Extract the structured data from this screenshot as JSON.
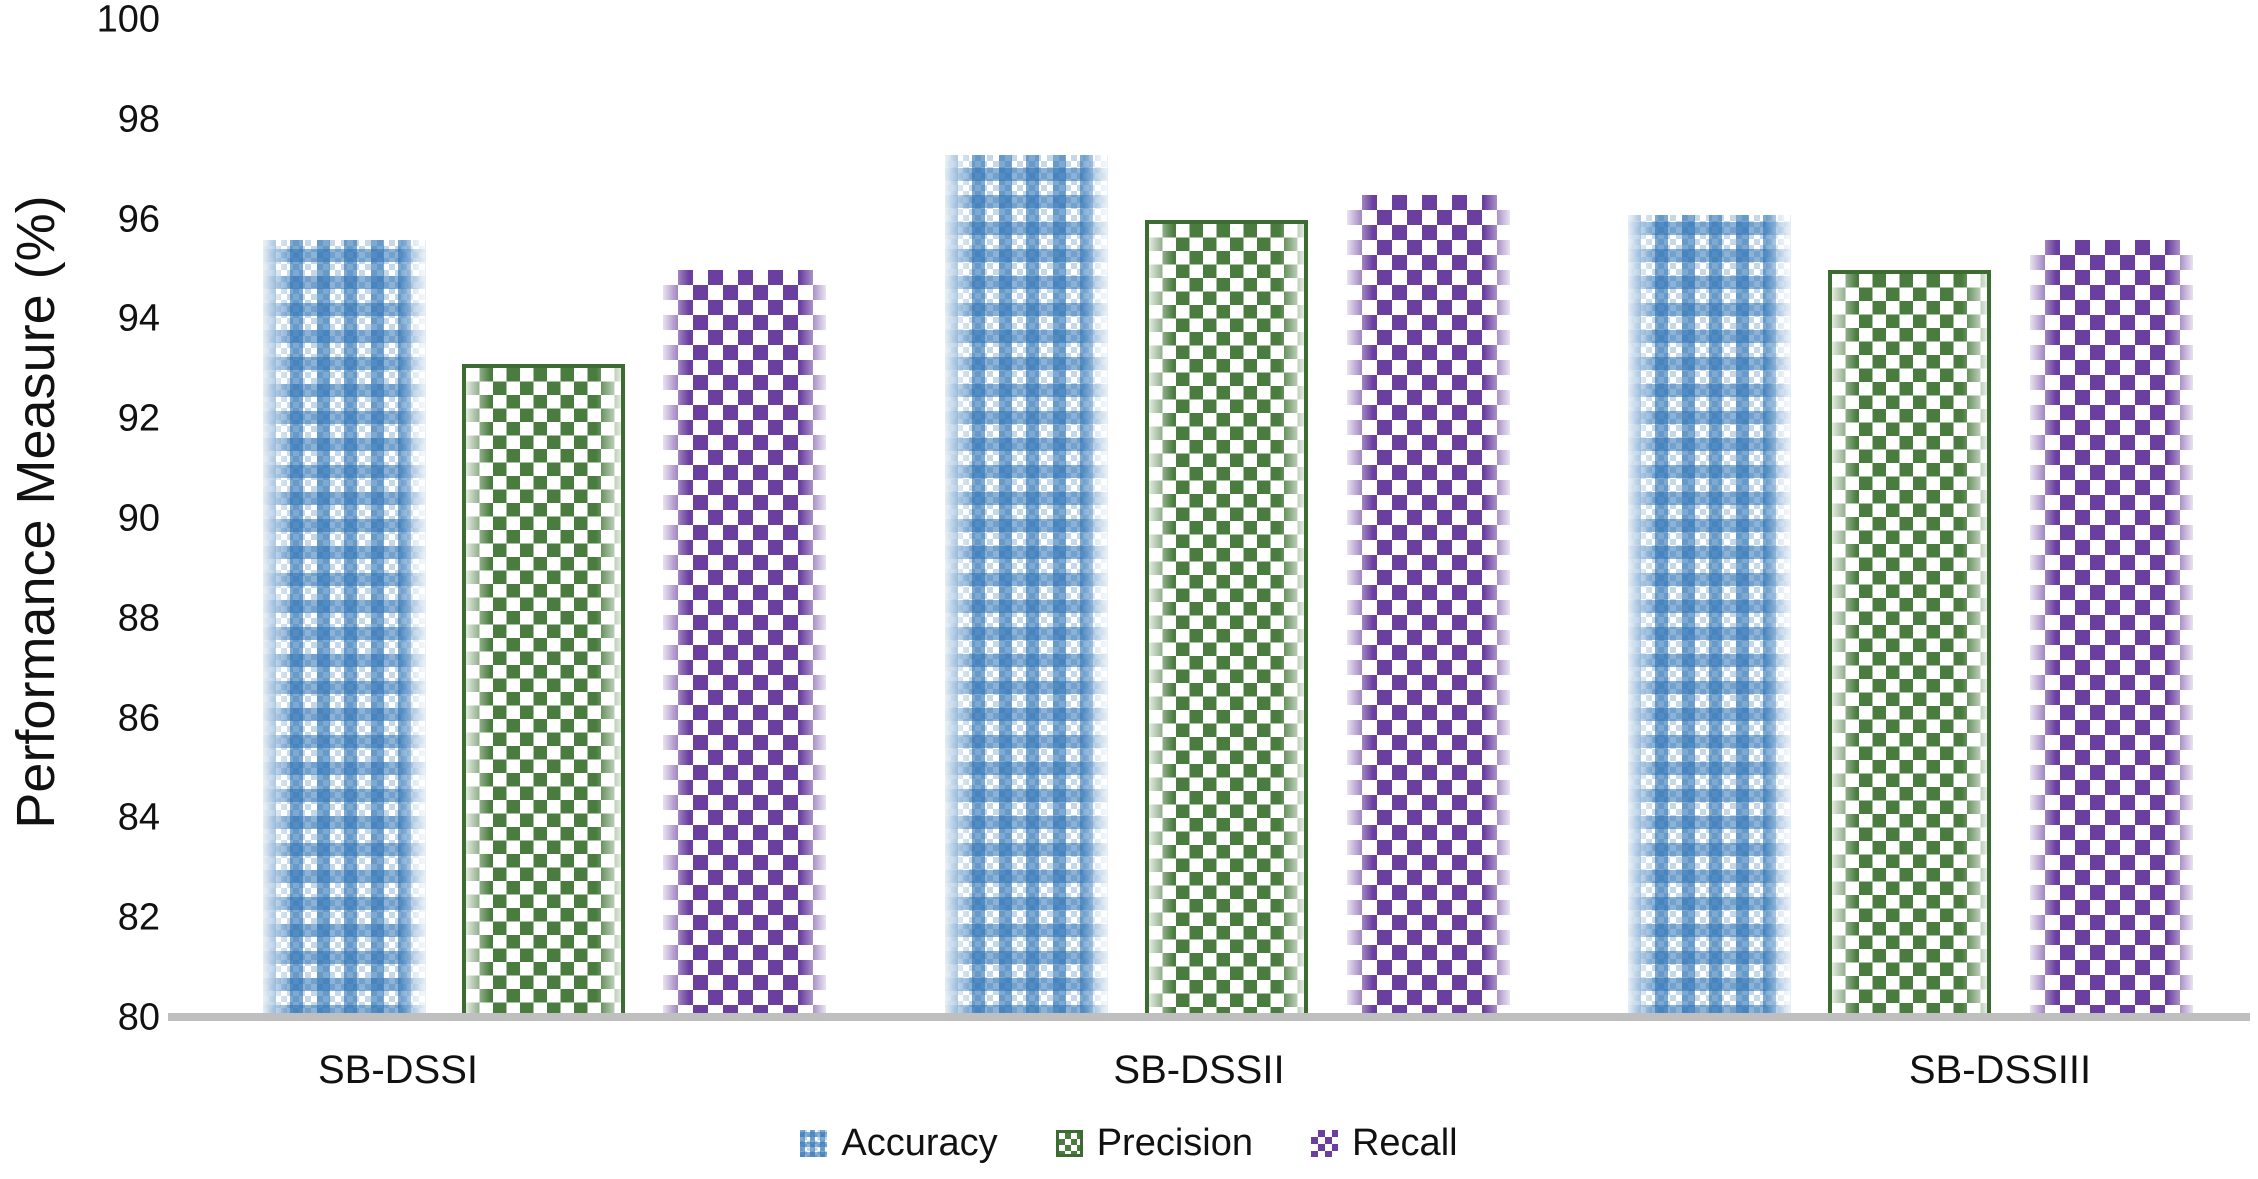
{
  "chart_data": {
    "type": "bar",
    "title": "",
    "xlabel": "",
    "ylabel": "Performance Measure (%)",
    "ylim": [
      80,
      100
    ],
    "ytick_step": 2,
    "ytick_labels": [
      "80",
      "82",
      "84",
      "86",
      "88",
      "90",
      "92",
      "94",
      "96",
      "98",
      "100"
    ],
    "categories": [
      "SB-DSSI",
      "SB-DSSII",
      "SB-DSSIII"
    ],
    "series": [
      {
        "name": "Accuracy",
        "pattern": "blue-weave",
        "color": "#2E74B5",
        "values": [
          95.6,
          97.3,
          96.1
        ]
      },
      {
        "name": "Precision",
        "pattern": "green-checker",
        "color": "#4A7C3F",
        "values": [
          93.1,
          96.0,
          95.0
        ]
      },
      {
        "name": "Recall",
        "pattern": "purple-diamond",
        "color": "#6B3FA0",
        "values": [
          95.0,
          96.5,
          95.6
        ]
      }
    ],
    "legend_position": "bottom",
    "grid": false,
    "axis_line_color": "#BFBFBF"
  }
}
